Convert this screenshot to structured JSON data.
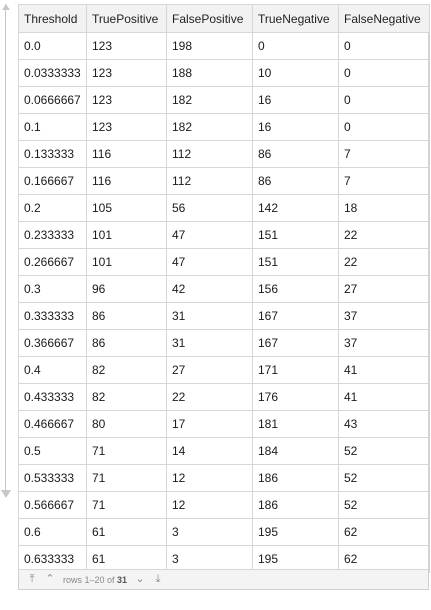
{
  "table": {
    "headers": [
      "Threshold",
      "TruePositive",
      "FalsePositive",
      "TrueNegative",
      "FalseNegative"
    ],
    "rows": [
      [
        "0.0",
        "123",
        "198",
        "0",
        "0"
      ],
      [
        "0.0333333",
        "123",
        "188",
        "10",
        "0"
      ],
      [
        "0.0666667",
        "123",
        "182",
        "16",
        "0"
      ],
      [
        "0.1",
        "123",
        "182",
        "16",
        "0"
      ],
      [
        "0.133333",
        "116",
        "112",
        "86",
        "7"
      ],
      [
        "0.166667",
        "116",
        "112",
        "86",
        "7"
      ],
      [
        "0.2",
        "105",
        "56",
        "142",
        "18"
      ],
      [
        "0.233333",
        "101",
        "47",
        "151",
        "22"
      ],
      [
        "0.266667",
        "101",
        "47",
        "151",
        "22"
      ],
      [
        "0.3",
        "96",
        "42",
        "156",
        "27"
      ],
      [
        "0.333333",
        "86",
        "31",
        "167",
        "37"
      ],
      [
        "0.366667",
        "86",
        "31",
        "167",
        "37"
      ],
      [
        "0.4",
        "82",
        "27",
        "171",
        "41"
      ],
      [
        "0.433333",
        "82",
        "22",
        "176",
        "41"
      ],
      [
        "0.466667",
        "80",
        "17",
        "181",
        "43"
      ],
      [
        "0.5",
        "71",
        "14",
        "184",
        "52"
      ],
      [
        "0.533333",
        "71",
        "12",
        "186",
        "52"
      ],
      [
        "0.566667",
        "71",
        "12",
        "186",
        "52"
      ],
      [
        "0.6",
        "61",
        "3",
        "195",
        "62"
      ],
      [
        "0.633333",
        "61",
        "3",
        "195",
        "62"
      ]
    ]
  },
  "footer": {
    "status_prefix": "rows 1–20 of ",
    "total": "31",
    "icons": [
      "jump-to-first-icon",
      "page-up-icon",
      "page-down-icon",
      "jump-to-last-icon"
    ]
  }
}
